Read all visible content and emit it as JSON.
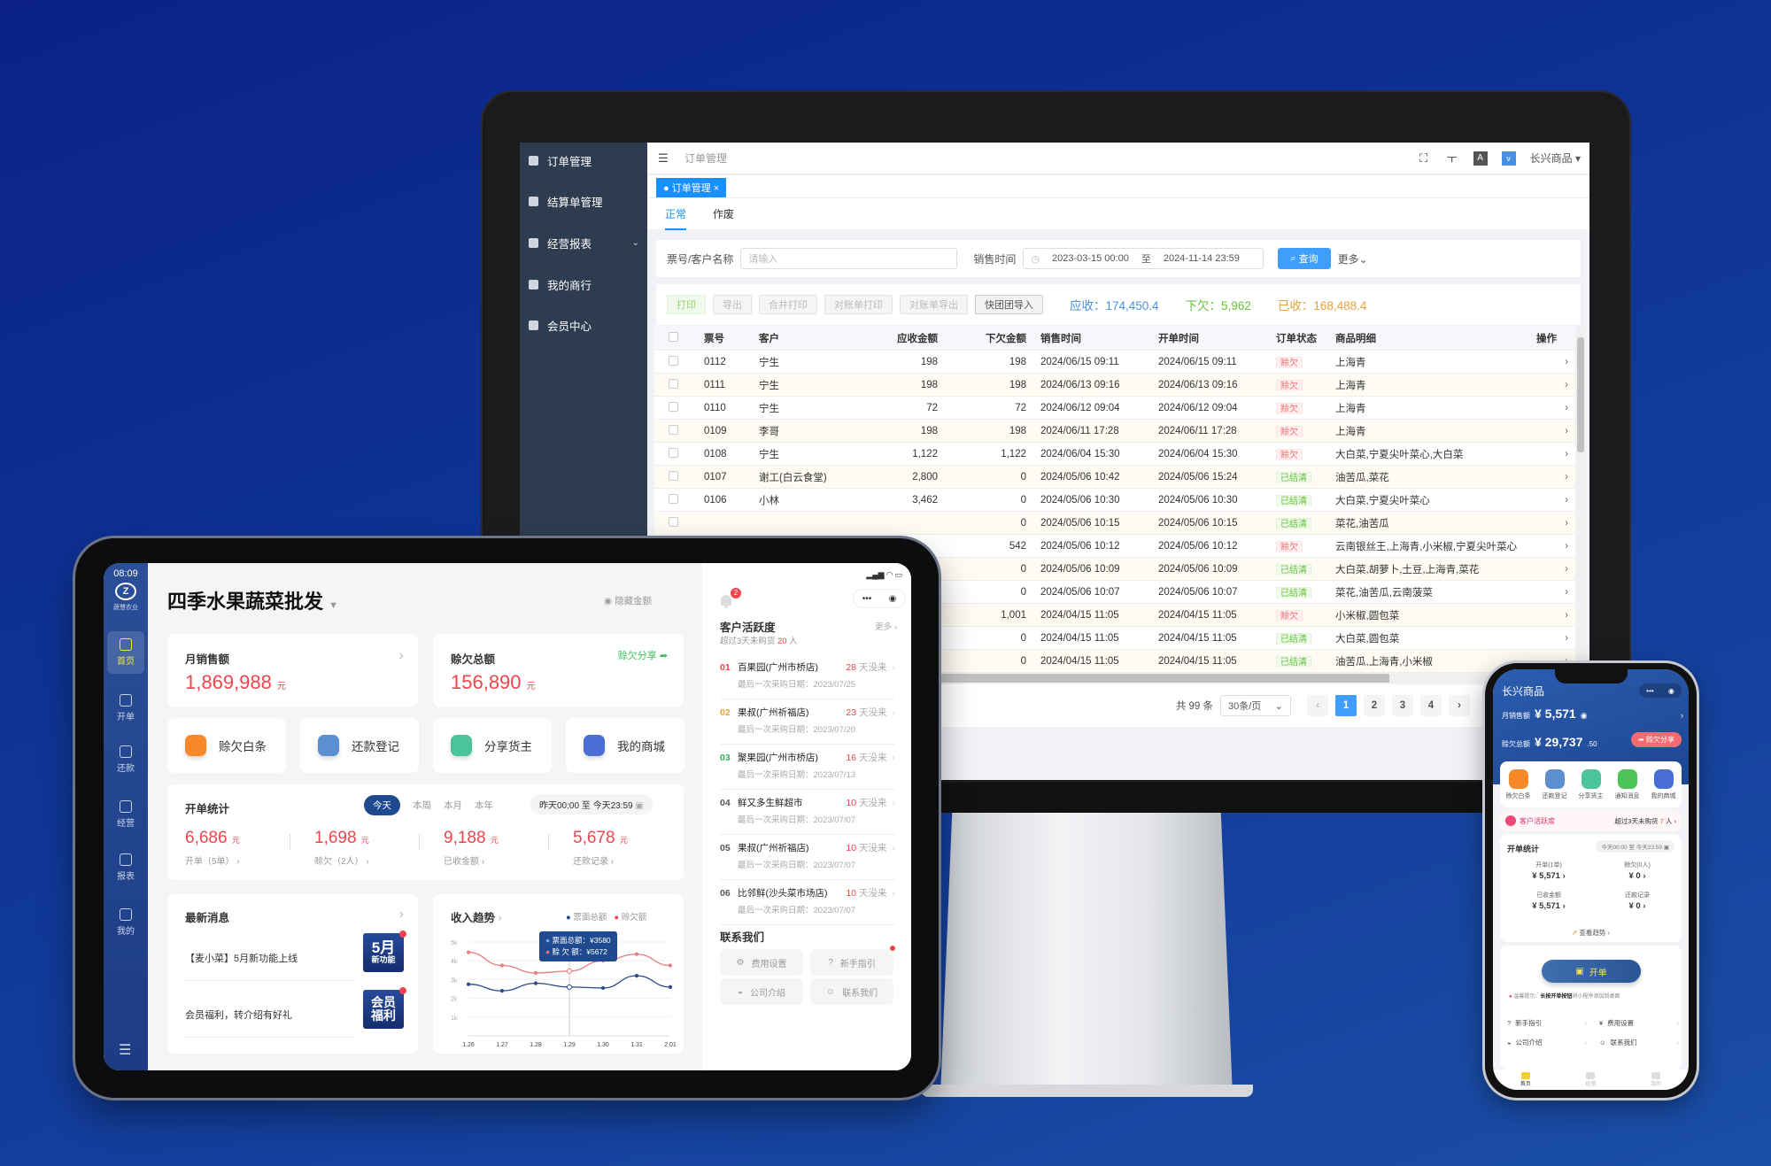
{
  "colors": {
    "background": "#0f3596",
    "accent": "#1890ff",
    "debt_red": "#f56c6c",
    "settled_green": "#67c23a",
    "receivable": "#4a90e2",
    "owed": "#67c23a",
    "received": "#e6a23c",
    "tablet_nav": "#1f3f86"
  },
  "desktop": {
    "sidebar": [
      {
        "label": "订单管理",
        "icon": "order-icon"
      },
      {
        "label": "结算单管理",
        "icon": "settlement-icon"
      },
      {
        "label": "经营报表",
        "icon": "report-icon",
        "expandable": true
      },
      {
        "label": "我的商行",
        "icon": "shop-icon"
      },
      {
        "label": "会员中心",
        "icon": "member-icon"
      }
    ],
    "topbar": {
      "breadcrumb": "订单管理",
      "store": "长兴商品"
    },
    "open_tab": "订单管理",
    "subtabs": [
      "正常",
      "作废"
    ],
    "filter": {
      "keyword_label": "票号/客户名称",
      "keyword_placeholder": "请输入",
      "time_label": "销售时间",
      "start": "2023-03-15 00:00",
      "sep": "至",
      "end": "2024-11-14 23:59",
      "query": "查询",
      "more": "更多"
    },
    "actions": [
      "打印",
      "导出",
      "合并打印",
      "对账单打印",
      "对账单导出",
      "快团团导入"
    ],
    "totals": {
      "receivable": "应收：174,450.4",
      "owed": "下欠：5,962",
      "received": "已收：168,488.4"
    },
    "columns": [
      "票号",
      "客户",
      "应收金额",
      "下欠金额",
      "销售时间",
      "开单时间",
      "订单状态",
      "商品明细",
      "操作"
    ],
    "rows": [
      [
        "0112",
        "宁生",
        "198",
        "198",
        "2024/06/15 09:11",
        "2024/06/15 09:11",
        "赊欠",
        "上海青"
      ],
      [
        "0111",
        "宁生",
        "198",
        "198",
        "2024/06/13 09:16",
        "2024/06/13 09:16",
        "赊欠",
        "上海青"
      ],
      [
        "0110",
        "宁生",
        "72",
        "72",
        "2024/06/12 09:04",
        "2024/06/12 09:04",
        "赊欠",
        "上海青"
      ],
      [
        "0109",
        "李哥",
        "198",
        "198",
        "2024/06/11 17:28",
        "2024/06/11 17:28",
        "赊欠",
        "上海青"
      ],
      [
        "0108",
        "宁生",
        "1,122",
        "1,122",
        "2024/06/04 15:30",
        "2024/06/04 15:30",
        "赊欠",
        "大白菜,宁夏尖叶菜心,大白菜"
      ],
      [
        "0107",
        "谢工(白云食堂)",
        "2,800",
        "0",
        "2024/05/06 10:42",
        "2024/05/06 15:24",
        "已结清",
        "油苦瓜,菜花"
      ],
      [
        "0106",
        "小林",
        "3,462",
        "0",
        "2024/05/06 10:30",
        "2024/05/06 10:30",
        "已结清",
        "大白菜,宁夏尖叶菜心"
      ],
      [
        "",
        "",
        "",
        "0",
        "2024/05/06 10:15",
        "2024/05/06 10:15",
        "已结清",
        "菜花,油苦瓜"
      ],
      [
        "",
        "",
        "",
        "542",
        "2024/05/06 10:12",
        "2024/05/06 10:12",
        "赊欠",
        "云南银丝王,上海青,小米椒,宁夏尖叶菜心"
      ],
      [
        "",
        "",
        "",
        "0",
        "2024/05/06 10:09",
        "2024/05/06 10:09",
        "已结清",
        "大白菜,胡萝卜,土豆,上海青,菜花"
      ],
      [
        "",
        "",
        "",
        "0",
        "2024/05/06 10:07",
        "2024/05/06 10:07",
        "已结清",
        "菜花,油苦瓜,云南菠菜"
      ],
      [
        "",
        "",
        "",
        "1,001",
        "2024/04/15 11:05",
        "2024/04/15 11:05",
        "赊欠",
        "小米椒,圆包菜"
      ],
      [
        "",
        "",
        "",
        "0",
        "2024/04/15 11:05",
        "2024/04/15 11:05",
        "已结清",
        "大白菜,圆包菜"
      ],
      [
        "",
        "",
        "",
        "0",
        "2024/04/15 11:05",
        "2024/04/15 11:05",
        "已结清",
        "油苦瓜,上海青,小米椒"
      ]
    ],
    "pagination": {
      "total": "共 99 条",
      "page_size": "30条/页",
      "pages": [
        "1",
        "2",
        "3",
        "4"
      ],
      "current": "1"
    }
  },
  "tablet": {
    "time": "08:09",
    "logo_text": "蔬慧农业",
    "nav": [
      "首页",
      "开单",
      "还款",
      "经营",
      "报表",
      "我的"
    ],
    "title": "四季水果蔬菜批发",
    "hide_amount": "隐藏金额",
    "monthly_sales": {
      "label": "月销售额",
      "value": "1,869,988",
      "unit": "元"
    },
    "debt_total": {
      "label": "赊欠总额",
      "value": "156,890",
      "unit": "元",
      "share": "赊欠分享"
    },
    "quick": [
      {
        "label": "赊欠白条",
        "color": "#f7892b"
      },
      {
        "label": "还款登记",
        "color": "#5b8fcf"
      },
      {
        "label": "分享货主",
        "color": "#4cc49a"
      },
      {
        "label": "我的商城",
        "color": "#4a6fd4"
      }
    ],
    "stats": {
      "title": "开单统计",
      "periods": [
        "今天",
        "本周",
        "本月",
        "本年"
      ],
      "range": "昨天00:00 至 今天23:59",
      "items": [
        {
          "value": "6,686",
          "unit": "元",
          "label": "开单（5单）"
        },
        {
          "value": "1,698",
          "unit": "元",
          "label": "赊欠（2人）"
        },
        {
          "value": "9,188",
          "unit": "元",
          "label": "已收金额"
        },
        {
          "value": "5,678",
          "unit": "元",
          "label": "还款记录"
        }
      ]
    },
    "news": {
      "title": "最新消息",
      "items": [
        {
          "text": "【麦小菜】5月新功能上线",
          "badge_big": "5月",
          "badge_small": "新功能"
        },
        {
          "text": "会员福利，转介绍有好礼",
          "badge_big": "会员",
          "badge_small": "福利"
        }
      ]
    },
    "chart_data": {
      "type": "line",
      "title": "收入趋势",
      "categories": [
        "1.26",
        "1.27",
        "1.28",
        "1.29",
        "1.30",
        "1.31",
        "2.01"
      ],
      "yticks": [
        "1k",
        "2k",
        "3k",
        "4k",
        "5k"
      ],
      "ylim": [
        0,
        5000
      ],
      "series": [
        {
          "name": "票面总额",
          "color": "#274a8c",
          "values": [
            2750,
            2400,
            2800,
            2600,
            2550,
            3200,
            2600
          ]
        },
        {
          "name": "赊欠额",
          "color": "#e97b7f",
          "values": [
            4450,
            3750,
            3350,
            3450,
            4000,
            4350,
            3750
          ]
        }
      ],
      "tooltip": {
        "lines": [
          "票面总额：¥3580",
          "赊 欠 额：¥5672"
        ]
      },
      "legend": "top-right",
      "grid": true
    },
    "right": {
      "bell_count": "2",
      "activity": {
        "title": "客户活跃度",
        "more": "更多",
        "sub_prefix": "超过3天未购货 ",
        "sub_count": "20",
        "sub_suffix": " 人",
        "items": [
          {
            "no": "01",
            "name": "百果园(广州市桥店)",
            "days": "28",
            "suffix": "天没来",
            "date": "最后一次采购日期：2023/07/25",
            "color": "#f0454d"
          },
          {
            "no": "02",
            "name": "果叔(广州祈福店)",
            "days": "23",
            "suffix": "天没来",
            "date": "最后一次采购日期：2023/07/20",
            "color": "#f0a02b"
          },
          {
            "no": "03",
            "name": "聚果园(广州市桥店)",
            "days": "16",
            "suffix": "天没来",
            "date": "最后一次采购日期：2023/07/13",
            "color": "#2fb35a"
          },
          {
            "no": "04",
            "name": "鲜又多生鲜超市",
            "days": "10",
            "suffix": "天没来",
            "date": "最后一次采购日期：2023/07/07",
            "color": "#555"
          },
          {
            "no": "05",
            "name": "果叔(广州祈福店)",
            "days": "10",
            "suffix": "天没来",
            "date": "最后一次采购日期：2023/07/07",
            "color": "#555"
          },
          {
            "no": "06",
            "name": "比邻鲜(沙头菜市场店)",
            "days": "10",
            "suffix": "天没来",
            "date": "最后一次采购日期：2023/07/07",
            "color": "#555"
          }
        ]
      },
      "contact": {
        "title": "联系我们",
        "buttons": [
          "费用设置",
          "新手指引",
          "公司介绍",
          "联系我们"
        ]
      }
    }
  },
  "phone": {
    "title": "长兴商品",
    "monthly": {
      "label": "月销售额",
      "value": "¥ 5,571"
    },
    "debt": {
      "label": "赊欠总额",
      "value": "¥ 29,737",
      "cents": ".50",
      "share": "赊欠分享"
    },
    "icons": [
      {
        "label": "赊欠白条",
        "color": "#f7892b"
      },
      {
        "label": "还款登记",
        "color": "#5b8fcf"
      },
      {
        "label": "分享货主",
        "color": "#4cc49a"
      },
      {
        "label": "通知消息",
        "color": "#4cc45a"
      },
      {
        "label": "我的商城",
        "color": "#4a6fd4"
      }
    ],
    "activity": {
      "label": "客户活跃度",
      "text": "超过3天未购货 ",
      "count": "7",
      "suffix": " 人"
    },
    "stats": {
      "title": "开单统计",
      "range": "今天00:00 至 今天23:59",
      "items": [
        {
          "label": "开单(1单)",
          "value": "¥ 5,571"
        },
        {
          "label": "赊欠(0人)",
          "value": "¥ 0"
        },
        {
          "label": "已收金额",
          "value": "¥ 5,571"
        },
        {
          "label": "还款记录",
          "value": "¥ 0"
        }
      ],
      "trend": "查看趋势"
    },
    "open_button": "开单",
    "tip_label": "温馨提示：",
    "tip_bold": "长按开单按钮",
    "tip_rest": "将小程序添加到桌面",
    "menu": [
      "新手指引",
      "费用设置",
      "公司介绍",
      "联系我们"
    ],
    "tabbar": [
      "首页",
      "经营",
      "我的"
    ]
  }
}
